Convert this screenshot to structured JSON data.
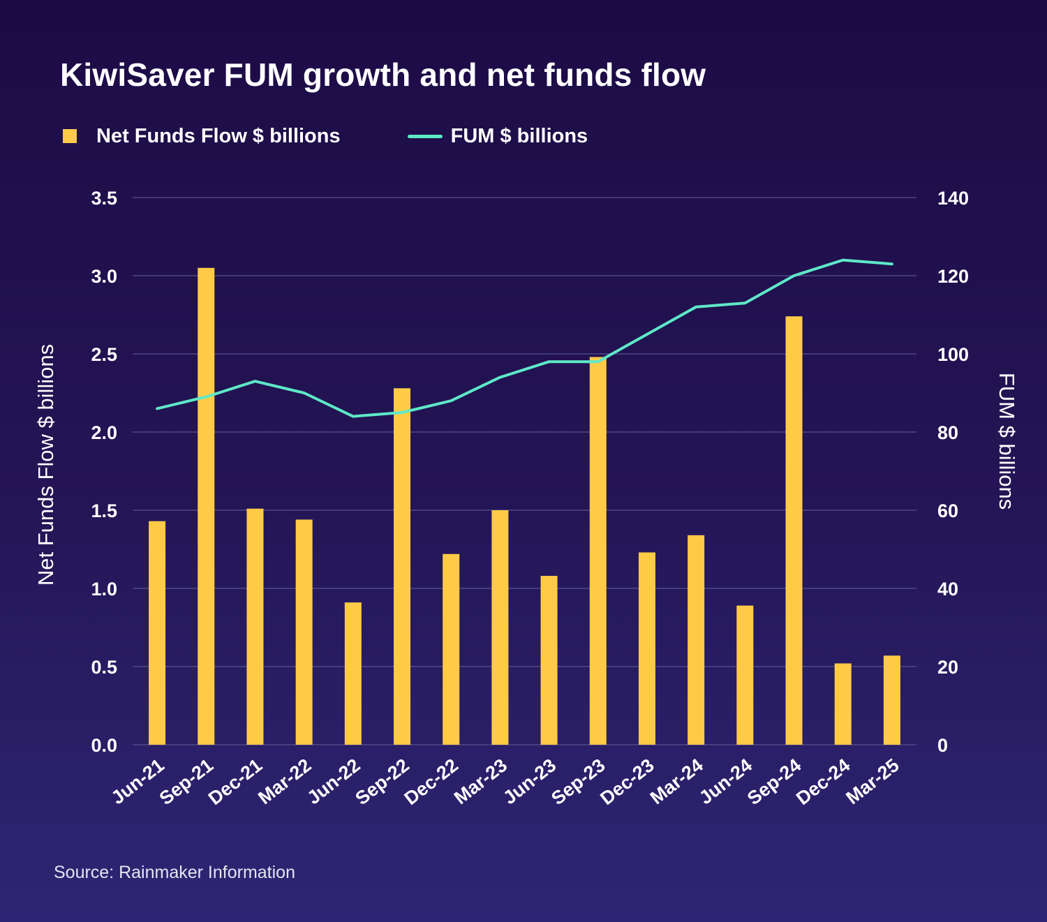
{
  "title": "KiwiSaver FUM growth and net funds flow",
  "legend": {
    "bar_label": "Net Funds Flow $ billions",
    "line_label": "FUM $ billions"
  },
  "source": "Source: Rainmaker Information",
  "colors": {
    "bar": "#ffcb47",
    "line": "#5ee8c8",
    "grid": "#5a5290"
  },
  "chart_data": {
    "type": "bar+line",
    "title": "KiwiSaver FUM growth and net funds flow",
    "categories": [
      "Jun-21",
      "Sep-21",
      "Dec-21",
      "Mar-22",
      "Jun-22",
      "Sep-22",
      "Dec-22",
      "Mar-23",
      "Jun-23",
      "Sep-23",
      "Dec-23",
      "Mar-24",
      "Jun-24",
      "Sep-24",
      "Dec-24",
      "Mar-25"
    ],
    "series": [
      {
        "name": "Net Funds Flow $ billions",
        "type": "bar",
        "axis": "left",
        "values": [
          1.43,
          3.05,
          1.51,
          1.44,
          0.91,
          2.28,
          1.22,
          1.5,
          1.08,
          2.48,
          1.23,
          1.34,
          0.89,
          2.74,
          0.52,
          0.57
        ]
      },
      {
        "name": "FUM $ billions",
        "type": "line",
        "axis": "right",
        "values": [
          86,
          89,
          93,
          90,
          84,
          85,
          88,
          94,
          98,
          98,
          105,
          112,
          113,
          120,
          124,
          123
        ]
      }
    ],
    "ylabel_left": "Net Funds Flow $ billions",
    "ylabel_right": "FUM $ billions",
    "ylim_left": [
      0,
      3.5
    ],
    "ylim_right": [
      0,
      140
    ],
    "yticks_left": [
      "0.0",
      "0.5",
      "1.0",
      "1.5",
      "2.0",
      "2.5",
      "3.0",
      "3.5"
    ],
    "yticks_right": [
      "0",
      "20",
      "40",
      "60",
      "80",
      "100",
      "120",
      "140"
    ],
    "grid": true,
    "legend_position": "top-left"
  }
}
